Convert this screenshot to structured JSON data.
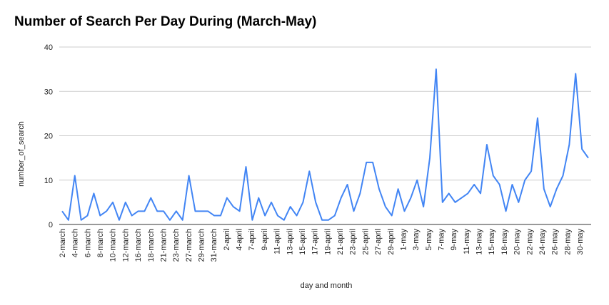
{
  "chart_data": {
    "type": "line",
    "title": "Number of Search Per Day During (March-May)",
    "xlabel": "day and month",
    "ylabel": "number_of_search",
    "ylim": [
      0,
      40
    ],
    "yticks": [
      0,
      10,
      20,
      30,
      40
    ],
    "grid": true,
    "legend": "none",
    "line_color": "#4285f4",
    "tick_labels": [
      "2-march",
      "4-march",
      "6-march",
      "8-march",
      "10-march",
      "12-march",
      "16-march",
      "18-march",
      "21-march",
      "23-march",
      "27-march",
      "29-march",
      "31-march",
      "2-april",
      "4-april",
      "7-april",
      "9-april",
      "11-april",
      "13-april",
      "15-april",
      "17-april",
      "19-april",
      "21-april",
      "23-april",
      "25-april",
      "27-april",
      "29-april",
      "1-may",
      "3-may",
      "5-may",
      "7-may",
      "9-may",
      "11-may",
      "13-may",
      "15-may",
      "18-may",
      "20-may",
      "22-may",
      "24-may",
      "26-may",
      "28-may",
      "30-may"
    ],
    "values": [
      3,
      1,
      11,
      1,
      2,
      7,
      2,
      3,
      5,
      1,
      5,
      2,
      3,
      3,
      6,
      3,
      3,
      1,
      3,
      1,
      11,
      3,
      3,
      3,
      2,
      2,
      6,
      4,
      3,
      13,
      1,
      6,
      2,
      5,
      2,
      1,
      4,
      2,
      5,
      12,
      5,
      1,
      1,
      2,
      6,
      9,
      3,
      7,
      14,
      14,
      8,
      4,
      2,
      8,
      3,
      6,
      10,
      4,
      15,
      35,
      5,
      7,
      5,
      6,
      7,
      9,
      7,
      18,
      11,
      9,
      3,
      9,
      5,
      10,
      12,
      24,
      8,
      4,
      8,
      11,
      18,
      34,
      17,
      15
    ]
  }
}
